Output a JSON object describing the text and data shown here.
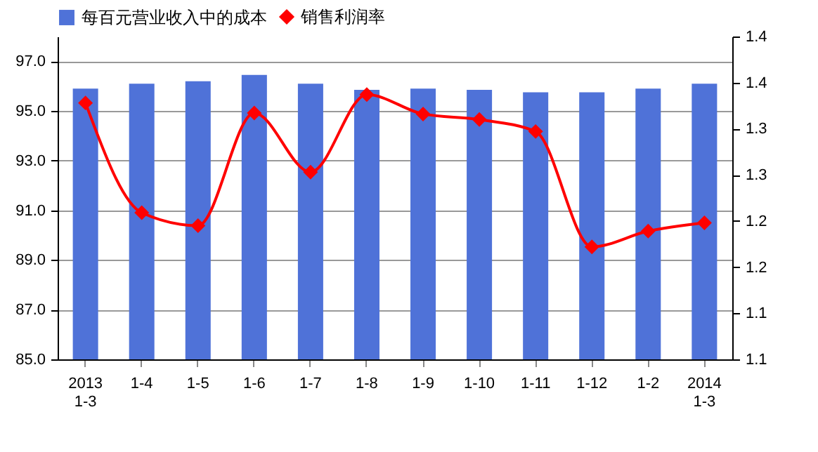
{
  "chart_data": {
    "type": "bar",
    "categories": [
      "2013\n1-3",
      "1-4",
      "1-5",
      "1-6",
      "1-7",
      "1-8",
      "1-9",
      "1-10",
      "1-11",
      "1-12",
      "1-2",
      "2014\n1-3"
    ],
    "series": [
      {
        "name": "每百元营业收入中的成本",
        "color": "#4f72d8",
        "values": [
          95.9,
          96.1,
          96.2,
          96.45,
          96.1,
          95.85,
          95.9,
          95.85,
          95.75,
          95.75,
          95.9,
          96.1
        ]
      },
      {
        "name": "销售利润率",
        "type": "line",
        "axis": "y2",
        "color": "#ff0000",
        "values": [
          1.378,
          1.259,
          1.245,
          1.367,
          1.303,
          1.387,
          1.366,
          1.36,
          1.347,
          1.222,
          1.239,
          1.248
        ]
      }
    ],
    "ylim": [
      85,
      98
    ],
    "yticks": [
      {
        "value": 85,
        "label": "85.0"
      },
      {
        "value": 87,
        "label": "87.0"
      },
      {
        "value": 89,
        "label": "89.0"
      },
      {
        "value": 91,
        "label": "91.0"
      },
      {
        "value": 93,
        "label": "93.0"
      },
      {
        "value": 95,
        "label": "95.0"
      },
      {
        "value": 97,
        "label": "97.0"
      }
    ],
    "y2lim": [
      1.1,
      1.45
    ],
    "y2ticks": [
      1.1,
      {
        "value": 1.15,
        "label": "1.1"
      },
      1.2,
      {
        "value": 1.25,
        "label": "1.2"
      },
      1.3,
      {
        "value": 1.35,
        "label": "1.3"
      },
      1.4,
      {
        "value": 1.45,
        "label": "1.4"
      }
    ],
    "grid": "y",
    "legend": "top",
    "marker": "diamond",
    "line_style": "solid"
  }
}
